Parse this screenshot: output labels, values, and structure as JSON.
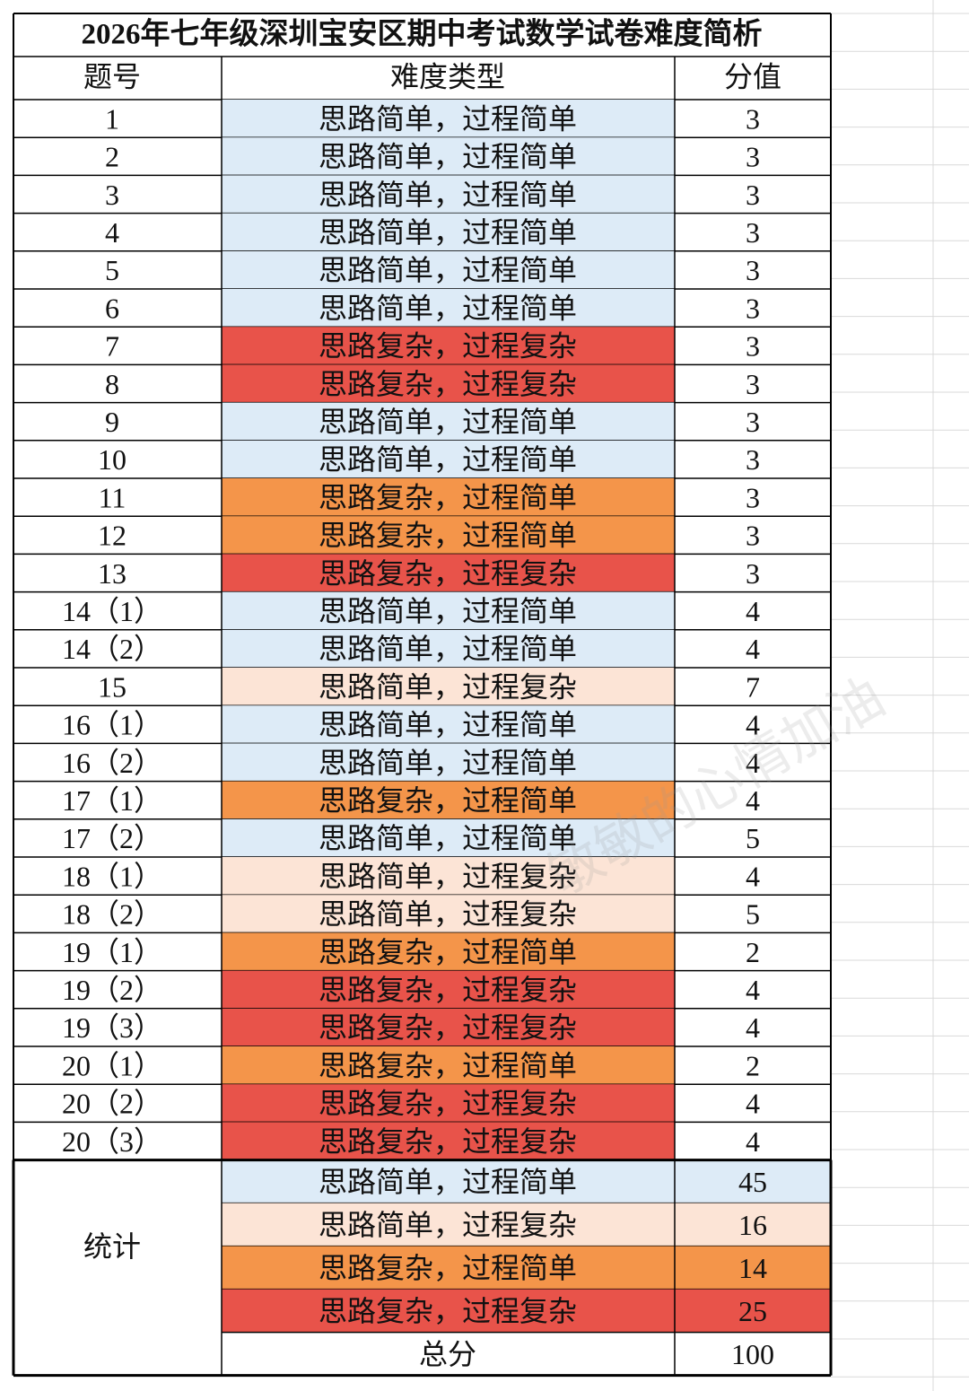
{
  "title": "2026年七年级深圳宝安区期中考试数学试卷难度简析",
  "table": {
    "header": [
      "题号",
      "难度类型",
      "分值"
    ],
    "rows": [
      [
        "1",
        "思路简单，过程简单",
        3
      ],
      [
        "2",
        "思路简单，过程简单",
        3
      ],
      [
        "3",
        "思路简单，过程简单",
        3
      ],
      [
        "4",
        "思路简单，过程简单",
        3
      ],
      [
        "5",
        "思路简单，过程简单",
        3
      ],
      [
        "6",
        "思路简单，过程简单",
        3
      ],
      [
        "7",
        "思路复杂，过程复杂",
        3
      ],
      [
        "8",
        "思路复杂，过程复杂",
        3
      ],
      [
        "9",
        "思路简单，过程简单",
        3
      ],
      [
        "10",
        "思路简单，过程简单",
        3
      ],
      [
        "11",
        "思路复杂，过程简单",
        3
      ],
      [
        "12",
        "思路复杂，过程简单",
        3
      ],
      [
        "13",
        "思路复杂，过程复杂",
        3
      ],
      [
        "14（1）",
        "思路简单，过程简单",
        4
      ],
      [
        "14（2）",
        "思路简单，过程简单",
        4
      ],
      [
        "15",
        "思路简单，过程复杂",
        7
      ],
      [
        "16（1）",
        "思路简单，过程简单",
        4
      ],
      [
        "16（2）",
        "思路简单，过程简单",
        4
      ],
      [
        "17（1）",
        "思路复杂，过程简单",
        4
      ],
      [
        "17（2）",
        "思路简单，过程简单",
        5
      ],
      [
        "18（1）",
        "思路简单，过程复杂",
        4
      ],
      [
        "18（2）",
        "思路简单，过程复杂",
        5
      ],
      [
        "19（1）",
        "思路复杂，过程简单",
        2
      ],
      [
        "19（2）",
        "思路复杂，过程复杂",
        4
      ],
      [
        "19（3）",
        "思路复杂，过程复杂",
        4
      ],
      [
        "20（1）",
        "思路复杂，过程简单",
        2
      ],
      [
        "20（2）",
        "思路复杂，过程复杂",
        4
      ],
      [
        "20（3）",
        "思路复杂，过程复杂",
        4
      ]
    ],
    "stats": {
      "label": "统计",
      "rows": [
        {
          "type": "思路简单，过程简单",
          "value": 45,
          "color": "#ddebf7"
        },
        {
          "type": "思路简单，过程复杂",
          "value": 16,
          "color": "#fce4d6"
        },
        {
          "type": "思路复杂，过程简单",
          "value": 14,
          "color": "#f4954a"
        },
        {
          "type": "思路复杂，过程复杂",
          "value": 25,
          "color": "#e8534a"
        }
      ],
      "total_label": "总分",
      "total": 100
    }
  },
  "watermark": "敏敏的心情加油"
}
